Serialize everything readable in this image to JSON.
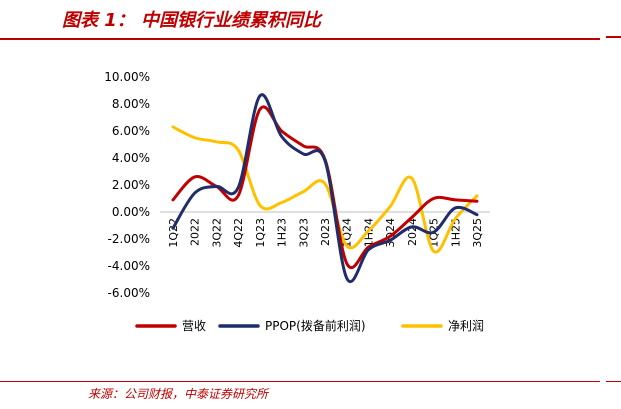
{
  "header": {
    "title": "图表 1： 中国银行业绩累积同比"
  },
  "footer": {
    "source": "来源：公司财报，中泰证券研究所"
  },
  "colors": {
    "accent": "#c00000",
    "revenue": "#c00000",
    "ppop": "#1f2d6b",
    "net_profit": "#ffc000"
  },
  "chart_data": {
    "type": "line",
    "categories": [
      "1Q22",
      "2022",
      "3Q22",
      "4Q22",
      "1Q23",
      "1H23",
      "3Q23",
      "2023",
      "1Q24",
      "1H24",
      "3Q24",
      "2024",
      "1Q25",
      "1H25",
      "3Q25"
    ],
    "y_tick_labels": [
      "10.00%",
      "8.00%",
      "6.00%",
      "4.00%",
      "2.00%",
      "0.00%",
      "-2.00%",
      "-4.00%",
      "-6.00%"
    ],
    "ylim": [
      -6,
      10
    ],
    "y_unit": "%",
    "grid": false,
    "legend_position": "bottom",
    "series": [
      {
        "name": "营收",
        "color": "#c00000",
        "values": [
          0.9,
          2.6,
          1.9,
          1.2,
          7.6,
          6.0,
          4.9,
          3.9,
          -3.8,
          -2.6,
          -1.8,
          -0.4,
          1.0,
          0.9,
          0.8
        ]
      },
      {
        "name": "PPOP(拨备前利润)",
        "color": "#1f2d6b",
        "values": [
          -1.2,
          1.4,
          1.9,
          1.8,
          8.6,
          5.6,
          4.3,
          3.8,
          -4.9,
          -2.8,
          -2.1,
          -1.1,
          -1.5,
          0.3,
          -0.2
        ]
      },
      {
        "name": "净利润",
        "color": "#ffc000",
        "values": [
          6.3,
          5.5,
          5.2,
          4.6,
          0.5,
          0.7,
          1.5,
          2.1,
          -2.5,
          -1.4,
          0.4,
          2.5,
          -2.9,
          -0.5,
          1.2
        ]
      }
    ]
  }
}
